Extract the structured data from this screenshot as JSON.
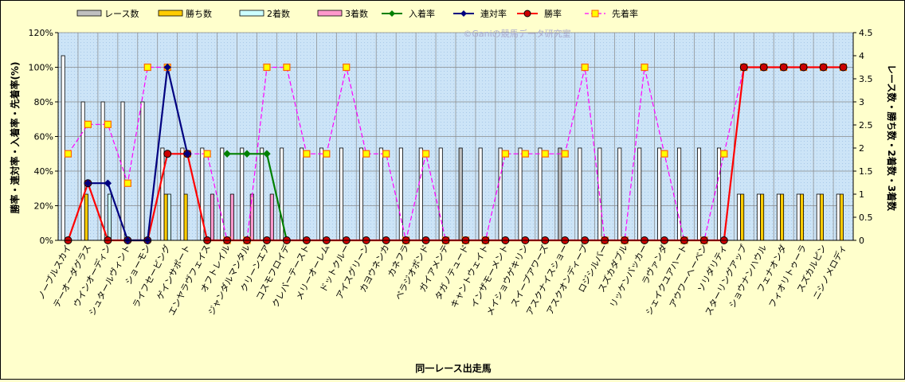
{
  "chart_data": {
    "type": "bar",
    "watermark": "©Ganiの競馬データ研究室",
    "xlabel": "同一レース出走馬",
    "ylabel_left": "勝率・連対率・入着率・先着率(%)",
    "ylabel_right": "レース数・勝ち数・2着数・3着数",
    "ylim_left": [
      0,
      120
    ],
    "yticks_left": [
      "0%",
      "20%",
      "40%",
      "60%",
      "80%",
      "100%",
      "120%"
    ],
    "ylim_right": [
      0,
      4.5
    ],
    "yticks_right": [
      "0",
      "0.5",
      "1",
      "1.5",
      "2",
      "2.5",
      "3",
      "3.5",
      "4",
      "4.5"
    ],
    "grid": true,
    "legend_position": "top",
    "categories": [
      "ノーブルスカイ",
      "テーオーダグラス",
      "ウインオーディン",
      "シュタールヴィント",
      "ショーモン",
      "ライフセービング",
      "ゲインサポート",
      "エンヤラヴフェイス",
      "オフトレイル",
      "ジャンダルマンタル",
      "クリーンエア",
      "コスモフロイデ",
      "クレバーテースト",
      "メリーオーレム",
      "ドットクルー",
      "アイスグリーン",
      "カヨウネンカ",
      "カネフラ",
      "ベラジオボンド",
      "ガイアメンテ",
      "タガノテュード",
      "キャントウェイト",
      "インザモーメント",
      "メイショウゲキリン",
      "スイープアワーズ",
      "アスクナイスショー",
      "アスクオンディープ",
      "ロジシルバー",
      "スズカダブル",
      "リッケンバッカー",
      "ラヴァンダ",
      "シェイクユアハート",
      "アウワーへーベン",
      "ソリダリティ",
      "スターリングアップ",
      "ショウナンハウル",
      "フェナオンダ",
      "フィオリトゥーラ",
      "スズカルピン",
      "ニシノメロディ"
    ],
    "series": [
      {
        "name": "レース数",
        "axis": "right",
        "kind": "bar",
        "color": "#ffffff",
        "values": [
          4,
          3,
          3,
          3,
          3,
          2,
          2,
          2,
          2,
          2,
          2,
          2,
          2,
          2,
          2,
          2,
          2,
          2,
          2,
          2,
          2,
          2,
          2,
          2,
          2,
          2,
          2,
          2,
          2,
          2,
          2,
          2,
          2,
          2,
          1,
          1,
          1,
          1,
          1,
          1
        ]
      },
      {
        "name": "勝ち数",
        "axis": "right",
        "kind": "bar",
        "color": "#ffcc00",
        "values": [
          0,
          1,
          0,
          0,
          0,
          1,
          1,
          0,
          0,
          0,
          0,
          0,
          0,
          0,
          0,
          0,
          0,
          0,
          0,
          0,
          0,
          0,
          0,
          0,
          0,
          0,
          0,
          0,
          0,
          0,
          0,
          0,
          0,
          0,
          1,
          1,
          1,
          1,
          1,
          1
        ]
      },
      {
        "name": "2着数",
        "axis": "right",
        "kind": "bar",
        "color": "#ccffff",
        "values": [
          0,
          0,
          1,
          0,
          0,
          1,
          0,
          0,
          0,
          0,
          0,
          0,
          0,
          0,
          0,
          0,
          0,
          0,
          0,
          0,
          0,
          0,
          0,
          0,
          0,
          0,
          0,
          0,
          0,
          0,
          0,
          0,
          0,
          0,
          0,
          0,
          0,
          0,
          0,
          0
        ]
      },
      {
        "name": "3着数",
        "axis": "right",
        "kind": "bar",
        "color": "#ff99cc",
        "values": [
          0,
          0,
          0,
          0,
          0,
          0,
          0,
          1,
          1,
          1,
          1,
          0,
          0,
          0,
          0,
          0,
          0,
          0,
          0,
          0,
          0,
          0,
          0,
          0,
          0,
          0,
          0,
          0,
          0,
          0,
          0,
          0,
          0,
          0,
          0,
          0,
          0,
          0,
          0,
          0
        ]
      },
      {
        "name": "入着率",
        "axis": "left",
        "kind": "line",
        "color": "#008000",
        "marker": "diamond",
        "values": [
          null,
          null,
          null,
          null,
          null,
          null,
          null,
          null,
          50,
          50,
          50,
          0,
          null,
          null,
          null,
          null,
          null,
          null,
          null,
          null,
          null,
          null,
          null,
          null,
          null,
          null,
          null,
          null,
          null,
          null,
          null,
          null,
          null,
          null,
          null,
          null,
          null,
          null,
          null,
          null
        ]
      },
      {
        "name": "連対率",
        "axis": "left",
        "kind": "line",
        "color": "#000080",
        "marker": "diamond",
        "values": [
          null,
          33,
          33,
          0,
          0,
          100,
          50,
          null,
          null,
          null,
          null,
          null,
          null,
          null,
          null,
          null,
          null,
          null,
          null,
          null,
          null,
          null,
          null,
          null,
          null,
          null,
          null,
          null,
          null,
          null,
          null,
          null,
          null,
          null,
          null,
          null,
          null,
          null,
          null,
          null
        ]
      },
      {
        "name": "勝率",
        "axis": "left",
        "kind": "line",
        "color": "#ff0000",
        "marker": "circle",
        "values": [
          0,
          33,
          0,
          0,
          0,
          50,
          50,
          0,
          0,
          0,
          0,
          0,
          0,
          0,
          0,
          0,
          0,
          0,
          0,
          0,
          0,
          0,
          0,
          0,
          0,
          0,
          0,
          0,
          0,
          0,
          0,
          0,
          0,
          0,
          100,
          100,
          100,
          100,
          100,
          100
        ]
      },
      {
        "name": "先着率",
        "axis": "left",
        "kind": "line",
        "color": "#ff00ff",
        "dashed": true,
        "marker": "square",
        "values": [
          50,
          67,
          67,
          33,
          100,
          100,
          50,
          50,
          0,
          0,
          100,
          100,
          50,
          50,
          100,
          50,
          50,
          0,
          50,
          0,
          0,
          0,
          50,
          50,
          50,
          50,
          100,
          0,
          0,
          100,
          50,
          0,
          0,
          50,
          100,
          100,
          100,
          100,
          100,
          100
        ]
      }
    ]
  }
}
